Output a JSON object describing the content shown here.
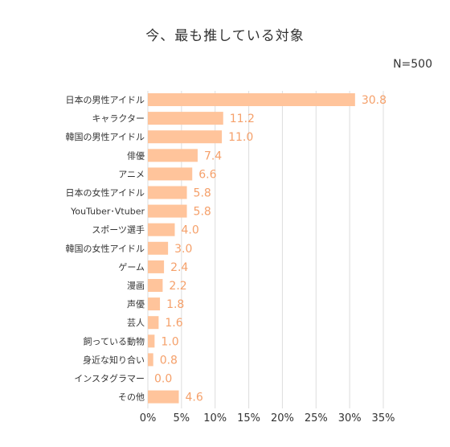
{
  "chart_data": {
    "type": "bar",
    "orientation": "horizontal",
    "title": "今、最も推している対象",
    "note": "N=500",
    "categories": [
      "日本の男性アイドル",
      "キャラクター",
      "韓国の男性アイドル",
      "俳優",
      "アニメ",
      "日本の女性アイドル",
      "YouTuber･Vtuber",
      "スポーツ選手",
      "韓国の女性アイドル",
      "ゲーム",
      "漫画",
      "声優",
      "芸人",
      "飼っている動物",
      "身近な知り合い",
      "インスタグラマー",
      "その他"
    ],
    "values": [
      30.8,
      11.2,
      11.0,
      7.4,
      6.6,
      5.8,
      5.8,
      4.0,
      3.0,
      2.4,
      2.2,
      1.8,
      1.6,
      1.0,
      0.8,
      0.0,
      4.6
    ],
    "value_labels": [
      "30.8",
      "11.2",
      "11.0",
      "7.4",
      "6.6",
      "5.8",
      "5.8",
      "4.0",
      "3.0",
      "2.4",
      "2.2",
      "1.8",
      "1.6",
      "1.0",
      "0.8",
      "0.0",
      "4.6"
    ],
    "x_ticks": [
      0,
      5,
      10,
      15,
      20,
      25,
      30,
      35
    ],
    "x_tick_labels": [
      "0%",
      "5%",
      "10%",
      "15%",
      "20%",
      "25%",
      "30%",
      "35%"
    ],
    "xlim": [
      0,
      35
    ],
    "xlabel": "",
    "ylabel": "",
    "grid": true,
    "colors": {
      "bar": "#ffc49b",
      "value_label": "#f5a06a",
      "grid": "#dddddd",
      "axis_text": "#333333"
    }
  }
}
